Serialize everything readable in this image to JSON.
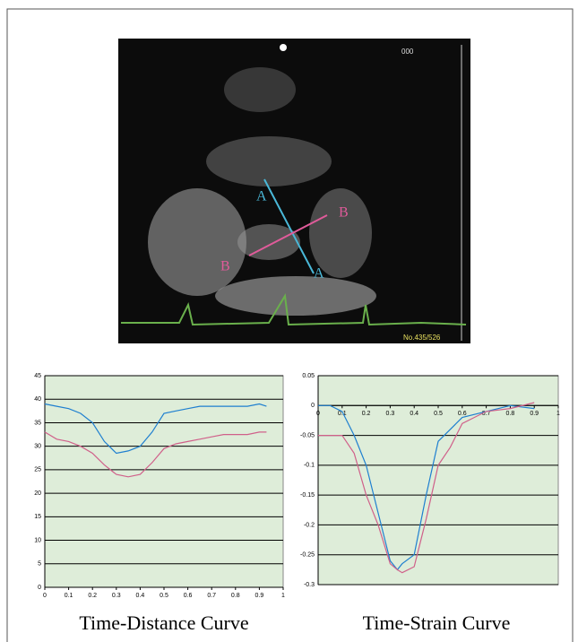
{
  "image": {
    "labels": [
      "A",
      "A",
      "B",
      "B"
    ],
    "frame": "No.435/526",
    "counter": "000"
  },
  "chart_data": [
    {
      "type": "line",
      "title": "Time-Distance Curve",
      "grid": true,
      "background": "#deedd9",
      "x": [
        0,
        0.05,
        0.1,
        0.15,
        0.2,
        0.25,
        0.3,
        0.35,
        0.4,
        0.45,
        0.5,
        0.55,
        0.6,
        0.65,
        0.7,
        0.75,
        0.8,
        0.85,
        0.9,
        0.93
      ],
      "series": [
        {
          "color": "#1e7fd0",
          "values": [
            39,
            38.5,
            38,
            37,
            35,
            31,
            28.5,
            29,
            30,
            33,
            37,
            37.5,
            38,
            38.5,
            38.5,
            38.5,
            38.5,
            38.5,
            39,
            38.5
          ]
        },
        {
          "color": "#d0608a",
          "values": [
            33,
            31.5,
            31,
            30,
            28.5,
            26,
            24,
            23.5,
            24,
            26.5,
            29.5,
            30.5,
            31,
            31.5,
            32,
            32.5,
            32.5,
            32.5,
            33,
            33
          ]
        }
      ],
      "xlim": [
        0,
        1
      ],
      "xticks": [
        0,
        0.1,
        0.2,
        0.3,
        0.4,
        0.5,
        0.6,
        0.7,
        0.8,
        0.9,
        1
      ],
      "ylim": [
        0,
        45
      ],
      "yticks": [
        0,
        5,
        10,
        15,
        20,
        25,
        30,
        35,
        40,
        45
      ]
    },
    {
      "type": "line",
      "title": "Time-Strain Curve",
      "grid": true,
      "background": "#deedd9",
      "x": [
        0,
        0.05,
        0.1,
        0.15,
        0.2,
        0.25,
        0.3,
        0.33,
        0.35,
        0.4,
        0.45,
        0.5,
        0.55,
        0.6,
        0.7,
        0.8,
        0.9
      ],
      "series": [
        {
          "color": "#1e7fd0",
          "values": [
            0,
            0,
            -0.01,
            -0.05,
            -0.1,
            -0.18,
            -0.26,
            -0.275,
            -0.265,
            -0.25,
            -0.15,
            -0.06,
            -0.04,
            -0.02,
            -0.01,
            0,
            -0.005
          ]
        },
        {
          "color": "#d0608a",
          "values": [
            -0.05,
            -0.05,
            -0.05,
            -0.08,
            -0.15,
            -0.2,
            -0.265,
            -0.275,
            -0.28,
            -0.27,
            -0.19,
            -0.1,
            -0.07,
            -0.03,
            -0.01,
            -0.005,
            0.005
          ]
        }
      ],
      "xlim": [
        0,
        1
      ],
      "xticks": [
        0,
        0.1,
        0.2,
        0.3,
        0.4,
        0.5,
        0.6,
        0.7,
        0.8,
        0.9,
        1
      ],
      "ylim": [
        -0.3,
        0.05
      ],
      "yticks": [
        -0.3,
        -0.25,
        -0.2,
        -0.15,
        -0.1,
        -0.05,
        0,
        0.05
      ]
    }
  ]
}
